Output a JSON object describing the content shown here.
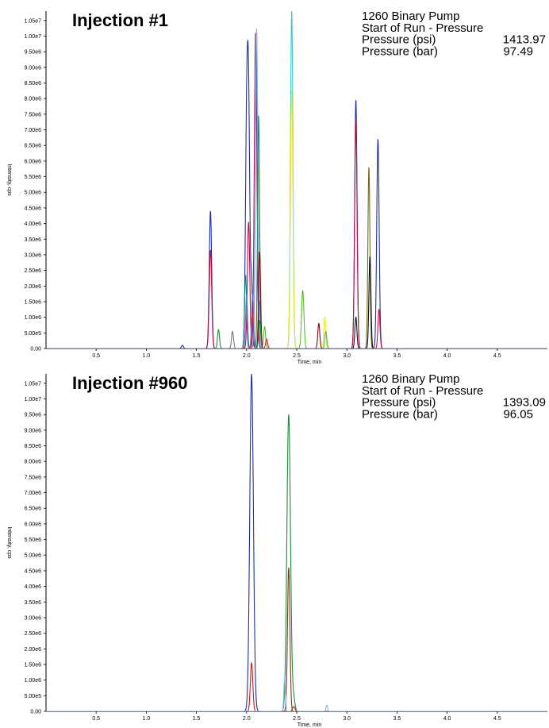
{
  "chart_data": [
    {
      "type": "line",
      "title": "Injection #1",
      "xlabel": "Time, min",
      "ylabel": "Intensity, cps",
      "xlim": [
        0,
        5.0
      ],
      "ylim": [
        0,
        10800000.0
      ],
      "xticks": [
        "0.5",
        "1.0",
        "1.5",
        "2.0",
        "2.5",
        "3.0",
        "3.5",
        "4.0",
        "4.5"
      ],
      "xtick_values": [
        0.5,
        1.0,
        1.5,
        2.0,
        2.5,
        3.0,
        3.5,
        4.0,
        4.5
      ],
      "yticks": [
        "0.00",
        "5.00e5",
        "1.00e6",
        "1.50e6",
        "2.00e6",
        "2.50e6",
        "3.00e6",
        "3.50e6",
        "4.00e6",
        "4.50e6",
        "5.00e6",
        "5.50e6",
        "6.00e6",
        "6.50e6",
        "7.00e6",
        "7.50e6",
        "8.00e6",
        "8.50e6",
        "9.00e6",
        "9.50e6",
        "1.00e7",
        "1.05e7"
      ],
      "ytick_values": [
        0,
        500000,
        1000000,
        1500000,
        2000000,
        2500000,
        3000000,
        3500000,
        4000000,
        4500000,
        5000000,
        5500000,
        6000000,
        6500000,
        7000000,
        7500000,
        8000000,
        8500000,
        9000000,
        9500000,
        10000000,
        10500000
      ],
      "info": {
        "line1": "1260 Binary Pump",
        "line2": "Start of Run - Pressure",
        "psi_label": "Pressure (psi)",
        "psi_value": "1413.97",
        "bar_label": "Pressure (bar)",
        "bar_value": "97.49"
      },
      "grid": false,
      "series": [
        {
          "color": "#1f2f9e",
          "peaks": [
            [
              1.64,
              4400000,
              0.012
            ],
            [
              2.02,
              7350000,
              0.012
            ],
            [
              2.0,
              6550000,
              0.012
            ],
            [
              2.05,
              2000000,
              0.01
            ],
            [
              2.13,
              1500000,
              0.01
            ],
            [
              3.09,
              7950000,
              0.012
            ],
            [
              3.31,
              6700000,
              0.012
            ],
            [
              1.36,
              100000,
              0.01
            ]
          ]
        },
        {
          "color": "#c0104a",
          "peaks": [
            [
              1.64,
              3150000,
              0.012
            ],
            [
              2.02,
              4050000,
              0.012
            ],
            [
              2.1,
              10000000,
              0.012
            ],
            [
              3.09,
              7250000,
              0.012
            ],
            [
              3.32,
              1250000,
              0.01
            ]
          ]
        },
        {
          "color": "#a0206a",
          "peaks": [
            [
              2.09,
              10100000,
              0.013
            ]
          ]
        },
        {
          "color": "#8fb8f0",
          "peaks": [
            [
              2.1,
              10250000,
              0.013
            ]
          ]
        },
        {
          "color": "#3ec7c7",
          "peaks": [
            [
              2.45,
              10800000,
              0.012
            ]
          ]
        },
        {
          "color": "#e4e830",
          "peaks": [
            [
              2.45,
              8250000,
              0.012
            ],
            [
              2.12,
              5800000,
              0.012
            ],
            [
              2.78,
              1000000,
              0.01
            ]
          ]
        },
        {
          "color": "#148a8a",
          "peaks": [
            [
              2.12,
              7450000,
              0.01
            ],
            [
              1.99,
              2350000,
              0.01
            ]
          ]
        },
        {
          "color": "#5ab833",
          "peaks": [
            [
              2.56,
              1850000,
              0.012
            ],
            [
              2.79,
              550000,
              0.01
            ],
            [
              2.18,
              700000,
              0.01
            ]
          ]
        },
        {
          "color": "#6b6b1a",
          "peaks": [
            [
              3.22,
              5800000,
              0.01
            ]
          ]
        },
        {
          "color": "#111111",
          "peaks": [
            [
              3.23,
              2950000,
              0.01
            ],
            [
              3.09,
              1000000,
              0.01
            ]
          ]
        },
        {
          "color": "#7a0a14",
          "peaks": [
            [
              2.13,
              3100000,
              0.01
            ],
            [
              2.72,
              800000,
              0.01
            ]
          ]
        },
        {
          "color": "#1d8a3a",
          "peaks": [
            [
              1.72,
              600000,
              0.01
            ],
            [
              2.13,
              900000,
              0.01
            ]
          ]
        },
        {
          "color": "#777777",
          "peaks": [
            [
              1.86,
              550000,
              0.01
            ]
          ]
        },
        {
          "color": "#e02010",
          "peaks": [
            [
              2.06,
              1000000,
              0.01
            ],
            [
              2.2,
              300000,
              0.01
            ]
          ]
        },
        {
          "color": "#7070c8",
          "peaks": [
            [
              2.06,
              1750000,
              0.01
            ],
            [
              2.0,
              1700000,
              0.01
            ]
          ]
        }
      ]
    },
    {
      "type": "line",
      "title": "Injection #960",
      "xlabel": "Time, min",
      "ylabel": "Intensity, cps",
      "xlim": [
        0,
        5.0
      ],
      "ylim": [
        0,
        10800000.0
      ],
      "xticks": [
        "0.5",
        "1.0",
        "1.5",
        "2.0",
        "2.5",
        "3.0",
        "3.5",
        "4.0",
        "4.5"
      ],
      "xtick_values": [
        0.5,
        1.0,
        1.5,
        2.0,
        2.5,
        3.0,
        3.5,
        4.0,
        4.5
      ],
      "yticks": [
        "0.00",
        "5.00e5",
        "1.00e6",
        "1.50e6",
        "2.00e6",
        "2.50e6",
        "3.00e6",
        "3.50e6",
        "4.00e6",
        "4.50e6",
        "5.00e6",
        "5.50e6",
        "6.00e6",
        "6.50e6",
        "7.00e6",
        "7.50e6",
        "8.00e6",
        "8.50e6",
        "9.00e6",
        "9.50e6",
        "1.00e7",
        "1.05e7"
      ],
      "ytick_values": [
        0,
        500000,
        1000000,
        1500000,
        2000000,
        2500000,
        3000000,
        3500000,
        4000000,
        4500000,
        5000000,
        5500000,
        6000000,
        6500000,
        7000000,
        7500000,
        8000000,
        8500000,
        9000000,
        9500000,
        10000000,
        10500000
      ],
      "info": {
        "line1": "1260 Binary Pump",
        "line2": "Start of Run - Pressure",
        "psi_label": "Pressure (psi)",
        "psi_value": "1393.09",
        "bar_label": "Pressure (bar)",
        "bar_value": "96.05"
      },
      "grid": false,
      "series": [
        {
          "color": "#1f2f9e",
          "peaks": [
            [
              2.05,
              10800000,
              0.018
            ]
          ]
        },
        {
          "color": "#d01818",
          "peaks": [
            [
              2.05,
              1550000,
              0.012
            ],
            [
              2.47,
              150000,
              0.012
            ]
          ]
        },
        {
          "color": "#1d8a3a",
          "peaks": [
            [
              2.42,
              9500000,
              0.018
            ],
            [
              2.47,
              400000,
              0.012
            ]
          ]
        },
        {
          "color": "#7a3a1a",
          "peaks": [
            [
              2.42,
              4600000,
              0.012
            ]
          ]
        },
        {
          "color": "#8fb8f0",
          "peaks": [
            [
              2.38,
              1100000,
              0.008
            ],
            [
              2.8,
              200000,
              0.008
            ]
          ]
        }
      ]
    }
  ]
}
